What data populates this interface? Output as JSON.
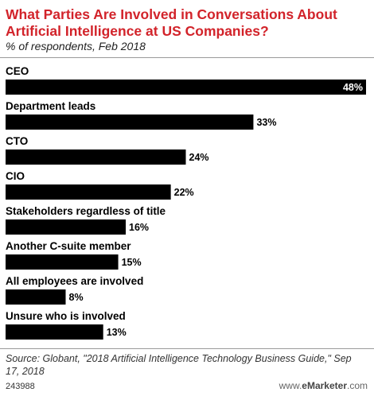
{
  "header": {
    "title": "What Parties Are Involved in Conversations About Artificial Intelligence at US Companies?",
    "subtitle": "% of respondents, Feb 2018"
  },
  "footer": {
    "source": "Source: Globant, \"2018 Artificial Intelligence Technology Business Guide,\" Sep 17, 2018",
    "chart_id": "243988",
    "brand": "www.eMarketer.com"
  },
  "colors": {
    "title": "#d2232a",
    "bar": "#000000"
  },
  "chart_data": {
    "type": "bar",
    "orientation": "horizontal",
    "categories": [
      "CEO",
      "Department leads",
      "CTO",
      "CIO",
      "Stakeholders regardless of title",
      "Another C-suite member",
      "All employees are involved",
      "Unsure who is involved"
    ],
    "values": [
      48,
      33,
      24,
      22,
      16,
      15,
      8,
      13
    ],
    "value_labels": [
      "48%",
      "33%",
      "24%",
      "22%",
      "16%",
      "15%",
      "8%",
      "13%"
    ],
    "xlim": [
      0,
      48
    ],
    "grid": false,
    "legend": "none"
  }
}
